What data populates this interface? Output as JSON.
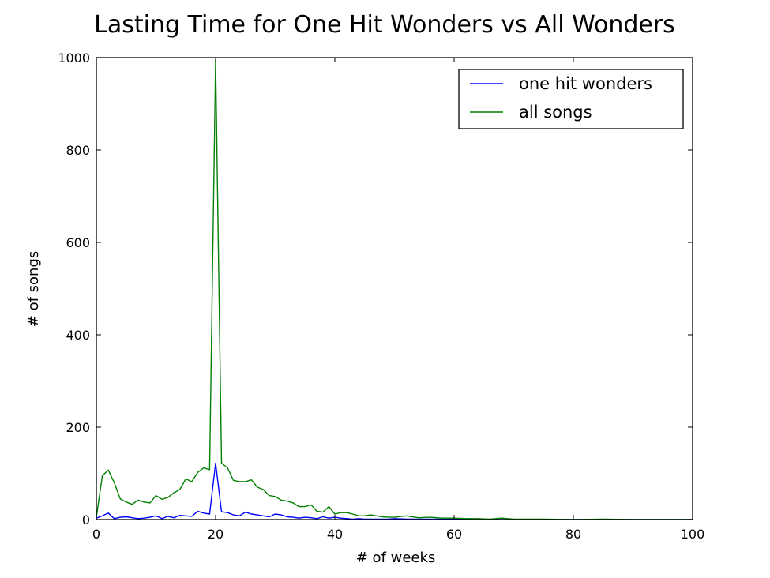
{
  "chart_data": {
    "type": "line",
    "title": "Lasting Time for One Hit Wonders vs All Wonders",
    "xlabel": "# of weeks",
    "ylabel": "# of songs",
    "xlim": [
      0,
      100
    ],
    "ylim": [
      0,
      1000
    ],
    "xticks": [
      0,
      20,
      40,
      60,
      80,
      100
    ],
    "yticks": [
      0,
      200,
      400,
      600,
      800,
      1000
    ],
    "xtick_labels": [
      "0",
      "20",
      "40",
      "60",
      "80",
      "100"
    ],
    "ytick_labels": [
      "0",
      "200",
      "400",
      "600",
      "800",
      "1000"
    ],
    "grid": false,
    "legend": "top-right",
    "series": [
      {
        "name": "one hit wonders",
        "color": "#0000ff",
        "x": [
          0,
          1,
          2,
          3,
          4,
          5,
          6,
          7,
          8,
          9,
          10,
          11,
          12,
          13,
          14,
          15,
          16,
          17,
          18,
          19,
          20,
          21,
          22,
          23,
          24,
          25,
          26,
          27,
          28,
          29,
          30,
          31,
          32,
          33,
          34,
          35,
          36,
          37,
          38,
          39,
          40,
          41,
          42,
          43,
          44,
          45,
          46,
          47,
          48,
          49,
          50,
          52,
          54,
          56,
          58,
          60,
          65,
          70,
          75,
          80,
          85,
          90,
          95,
          100
        ],
        "values": [
          3,
          8,
          14,
          2,
          5,
          6,
          4,
          2,
          3,
          5,
          8,
          2,
          7,
          4,
          9,
          8,
          7,
          18,
          14,
          12,
          122,
          17,
          15,
          10,
          8,
          16,
          12,
          10,
          8,
          6,
          12,
          10,
          6,
          5,
          3,
          5,
          4,
          2,
          6,
          3,
          5,
          3,
          2,
          1,
          2,
          1,
          1,
          1,
          1,
          1,
          2,
          1,
          1,
          1,
          1,
          1,
          0,
          0,
          0,
          0,
          0,
          0,
          0,
          0
        ]
      },
      {
        "name": "all songs",
        "color": "#008000",
        "x": [
          0,
          1,
          2,
          3,
          4,
          5,
          6,
          7,
          8,
          9,
          10,
          11,
          12,
          13,
          14,
          15,
          16,
          17,
          18,
          19,
          20,
          21,
          22,
          23,
          24,
          25,
          26,
          27,
          28,
          29,
          30,
          31,
          32,
          33,
          34,
          35,
          36,
          37,
          38,
          39,
          40,
          41,
          42,
          43,
          44,
          45,
          46,
          47,
          48,
          49,
          50,
          52,
          54,
          56,
          58,
          60,
          62,
          64,
          66,
          68,
          70,
          75,
          80,
          85,
          90,
          95,
          100
        ],
        "values": [
          5,
          95,
          107,
          80,
          45,
          38,
          33,
          42,
          38,
          36,
          52,
          44,
          48,
          58,
          65,
          88,
          82,
          102,
          112,
          108,
          995,
          122,
          112,
          85,
          82,
          82,
          86,
          70,
          65,
          52,
          50,
          42,
          40,
          36,
          28,
          28,
          32,
          18,
          16,
          28,
          12,
          15,
          15,
          12,
          8,
          8,
          10,
          8,
          6,
          5,
          5,
          8,
          4,
          5,
          3,
          3,
          2,
          2,
          1,
          3,
          1,
          1,
          0,
          1,
          0,
          0,
          0
        ]
      }
    ]
  }
}
